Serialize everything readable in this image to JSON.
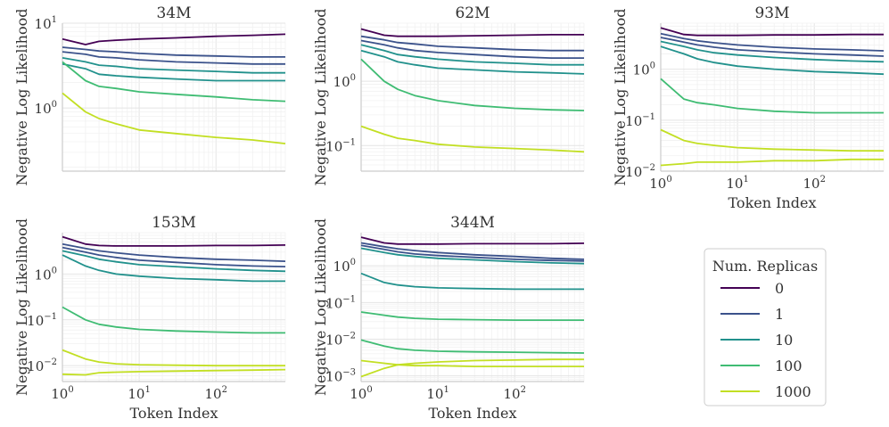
{
  "colors": {
    "0": "#440154",
    "1": "#3b528b",
    "10": "#21918c",
    "100": "#3fbc73",
    "1000": "#c2df23",
    "grid": "#ececec",
    "axis": "#cccccc"
  },
  "legend": {
    "title": "Num. Replicas",
    "entries": [
      "0",
      "1",
      "10",
      "100",
      "1000"
    ]
  },
  "chart_data": [
    {
      "type": "line",
      "title": "34M",
      "xlabel": "",
      "ylabel": "Negative Log Likelihood",
      "xscale": "log",
      "yscale": "log",
      "xlim": [
        1,
        800
      ],
      "ylim": [
        0.18,
        10
      ],
      "yticks": [
        {
          "value": 1,
          "base": "10",
          "exp": "0"
        },
        {
          "value": 10,
          "base": "10",
          "exp": "1"
        }
      ],
      "xticks": [],
      "series": [
        {
          "name": "0",
          "x": [
            1,
            2,
            3,
            5,
            10,
            30,
            100,
            300,
            800
          ],
          "y": [
            6.5,
            5.6,
            6.1,
            6.3,
            6.5,
            6.7,
            7.0,
            7.2,
            7.4
          ]
        },
        {
          "name": "1",
          "x": [
            1,
            2,
            3,
            5,
            10,
            30,
            100,
            300,
            800
          ],
          "y": [
            5.2,
            4.9,
            4.7,
            4.6,
            4.4,
            4.2,
            4.1,
            4.0,
            4.0
          ]
        },
        {
          "name": "1",
          "x": [
            1,
            2,
            3,
            5,
            10,
            30,
            100,
            300,
            800
          ],
          "y": [
            4.6,
            4.3,
            4.0,
            3.9,
            3.7,
            3.5,
            3.4,
            3.3,
            3.3
          ]
        },
        {
          "name": "10",
          "x": [
            1,
            2,
            3,
            5,
            10,
            30,
            100,
            300,
            800
          ],
          "y": [
            3.9,
            3.5,
            3.2,
            3.1,
            2.9,
            2.8,
            2.7,
            2.6,
            2.6
          ]
        },
        {
          "name": "10",
          "x": [
            1,
            2,
            3,
            5,
            10,
            30,
            100,
            300,
            800
          ],
          "y": [
            3.3,
            2.9,
            2.5,
            2.4,
            2.3,
            2.2,
            2.1,
            2.1,
            2.1
          ]
        },
        {
          "name": "100",
          "x": [
            1,
            2,
            3,
            5,
            10,
            30,
            100,
            300,
            800
          ],
          "y": [
            3.5,
            2.1,
            1.8,
            1.7,
            1.55,
            1.45,
            1.35,
            1.25,
            1.2
          ]
        },
        {
          "name": "1000",
          "x": [
            1,
            2,
            3,
            5,
            10,
            30,
            100,
            300,
            800
          ],
          "y": [
            1.5,
            0.9,
            0.75,
            0.65,
            0.55,
            0.5,
            0.45,
            0.42,
            0.38
          ]
        }
      ]
    },
    {
      "type": "line",
      "title": "62M",
      "xlabel": "",
      "ylabel": "Negative Log Likelihood",
      "xscale": "log",
      "yscale": "log",
      "xlim": [
        1,
        800
      ],
      "ylim": [
        0.04,
        8
      ],
      "yticks": [
        {
          "value": 0.1,
          "base": "10",
          "exp": "−1"
        },
        {
          "value": 1,
          "base": "10",
          "exp": "0"
        }
      ],
      "xticks": [],
      "series": [
        {
          "name": "0",
          "x": [
            1,
            2,
            3,
            5,
            10,
            30,
            100,
            300,
            800
          ],
          "y": [
            6.5,
            5.2,
            5.0,
            5.0,
            5.0,
            5.1,
            5.2,
            5.3,
            5.3
          ]
        },
        {
          "name": "1",
          "x": [
            1,
            2,
            3,
            5,
            10,
            30,
            100,
            300,
            800
          ],
          "y": [
            5.0,
            4.4,
            4.0,
            3.8,
            3.5,
            3.3,
            3.1,
            3.0,
            3.0
          ]
        },
        {
          "name": "1",
          "x": [
            1,
            2,
            3,
            5,
            10,
            30,
            100,
            300,
            800
          ],
          "y": [
            4.3,
            3.7,
            3.3,
            3.0,
            2.8,
            2.6,
            2.4,
            2.3,
            2.3
          ]
        },
        {
          "name": "10",
          "x": [
            1,
            2,
            3,
            5,
            10,
            30,
            100,
            300,
            800
          ],
          "y": [
            3.7,
            3.0,
            2.6,
            2.4,
            2.2,
            2.0,
            1.9,
            1.8,
            1.8
          ]
        },
        {
          "name": "10",
          "x": [
            1,
            2,
            3,
            5,
            10,
            30,
            100,
            300,
            800
          ],
          "y": [
            3.0,
            2.4,
            2.0,
            1.8,
            1.6,
            1.5,
            1.4,
            1.35,
            1.3
          ]
        },
        {
          "name": "100",
          "x": [
            1,
            2,
            3,
            5,
            10,
            30,
            100,
            300,
            800
          ],
          "y": [
            2.2,
            1.0,
            0.75,
            0.6,
            0.5,
            0.42,
            0.38,
            0.36,
            0.35
          ]
        },
        {
          "name": "1000",
          "x": [
            1,
            2,
            3,
            5,
            10,
            30,
            100,
            300,
            800
          ],
          "y": [
            0.2,
            0.15,
            0.13,
            0.12,
            0.105,
            0.095,
            0.09,
            0.085,
            0.08
          ]
        }
      ]
    },
    {
      "type": "line",
      "title": "93M",
      "xlabel": "Token Index",
      "ylabel": "Negative Log Likelihood",
      "xscale": "log",
      "yscale": "log",
      "xlim": [
        1,
        800
      ],
      "ylim": [
        0.01,
        8
      ],
      "yticks": [
        {
          "value": 0.01,
          "base": "10",
          "exp": "−2"
        },
        {
          "value": 0.1,
          "base": "10",
          "exp": "−1"
        },
        {
          "value": 1,
          "base": "10",
          "exp": "0"
        }
      ],
      "xticks": [
        {
          "value": 1,
          "base": "10",
          "exp": "0"
        },
        {
          "value": 10,
          "base": "10",
          "exp": "1"
        },
        {
          "value": 100,
          "base": "10",
          "exp": "2"
        }
      ],
      "series": [
        {
          "name": "0",
          "x": [
            1,
            2,
            3,
            5,
            10,
            30,
            100,
            300,
            800
          ],
          "y": [
            6.5,
            4.8,
            4.6,
            4.6,
            4.6,
            4.7,
            4.7,
            4.8,
            4.8
          ]
        },
        {
          "name": "1",
          "x": [
            1,
            2,
            3,
            5,
            10,
            30,
            100,
            300,
            800
          ],
          "y": [
            5.0,
            4.0,
            3.6,
            3.3,
            3.0,
            2.7,
            2.5,
            2.4,
            2.3
          ]
        },
        {
          "name": "1",
          "x": [
            1,
            2,
            3,
            5,
            10,
            30,
            100,
            300,
            800
          ],
          "y": [
            4.2,
            3.4,
            3.0,
            2.7,
            2.4,
            2.2,
            2.0,
            1.9,
            1.8
          ]
        },
        {
          "name": "10",
          "x": [
            1,
            2,
            3,
            5,
            10,
            30,
            100,
            300,
            800
          ],
          "y": [
            3.5,
            2.8,
            2.4,
            2.1,
            1.9,
            1.7,
            1.55,
            1.45,
            1.4
          ]
        },
        {
          "name": "10",
          "x": [
            1,
            2,
            3,
            5,
            10,
            30,
            100,
            300,
            800
          ],
          "y": [
            2.8,
            2.0,
            1.6,
            1.35,
            1.15,
            1.0,
            0.9,
            0.85,
            0.8
          ]
        },
        {
          "name": "100",
          "x": [
            1,
            2,
            3,
            5,
            10,
            30,
            100,
            300,
            800
          ],
          "y": [
            0.65,
            0.26,
            0.22,
            0.2,
            0.17,
            0.15,
            0.14,
            0.14,
            0.14
          ]
        },
        {
          "name": "1000",
          "x": [
            1,
            2,
            3,
            5,
            10,
            30,
            100,
            300,
            800
          ],
          "y": [
            0.065,
            0.04,
            0.035,
            0.032,
            0.029,
            0.027,
            0.026,
            0.025,
            0.025
          ]
        },
        {
          "name": "1000",
          "x": [
            1,
            2,
            3,
            5,
            10,
            30,
            100,
            300,
            800
          ],
          "y": [
            0.013,
            0.014,
            0.015,
            0.015,
            0.015,
            0.016,
            0.016,
            0.017,
            0.017
          ]
        }
      ]
    },
    {
      "type": "line",
      "title": "153M",
      "xlabel": "Token Index",
      "ylabel": "Negative Log Likelihood",
      "xscale": "log",
      "yscale": "log",
      "xlim": [
        1,
        800
      ],
      "ylim": [
        0.0045,
        8
      ],
      "yticks": [
        {
          "value": 0.01,
          "base": "10",
          "exp": "−2"
        },
        {
          "value": 0.1,
          "base": "10",
          "exp": "−1"
        },
        {
          "value": 1,
          "base": "10",
          "exp": "0"
        }
      ],
      "xticks": [
        {
          "value": 1,
          "base": "10",
          "exp": "0"
        },
        {
          "value": 10,
          "base": "10",
          "exp": "1"
        },
        {
          "value": 100,
          "base": "10",
          "exp": "2"
        }
      ],
      "series": [
        {
          "name": "0",
          "x": [
            1,
            2,
            3,
            5,
            10,
            30,
            100,
            300,
            800
          ],
          "y": [
            6.5,
            4.5,
            4.2,
            4.1,
            4.1,
            4.1,
            4.2,
            4.2,
            4.3
          ]
        },
        {
          "name": "1",
          "x": [
            1,
            2,
            3,
            5,
            10,
            30,
            100,
            300,
            800
          ],
          "y": [
            4.5,
            3.6,
            3.2,
            2.9,
            2.6,
            2.3,
            2.1,
            2.0,
            1.9
          ]
        },
        {
          "name": "1",
          "x": [
            1,
            2,
            3,
            5,
            10,
            30,
            100,
            300,
            800
          ],
          "y": [
            3.8,
            3.0,
            2.6,
            2.3,
            2.0,
            1.8,
            1.6,
            1.5,
            1.45
          ]
        },
        {
          "name": "10",
          "x": [
            1,
            2,
            3,
            5,
            10,
            30,
            100,
            300,
            800
          ],
          "y": [
            3.2,
            2.5,
            2.1,
            1.85,
            1.6,
            1.45,
            1.3,
            1.2,
            1.15
          ]
        },
        {
          "name": "10",
          "x": [
            1,
            2,
            3,
            5,
            10,
            30,
            100,
            300,
            800
          ],
          "y": [
            2.6,
            1.5,
            1.2,
            1.0,
            0.9,
            0.8,
            0.75,
            0.7,
            0.7
          ]
        },
        {
          "name": "100",
          "x": [
            1,
            2,
            3,
            5,
            10,
            30,
            100,
            300,
            800
          ],
          "y": [
            0.19,
            0.1,
            0.08,
            0.07,
            0.062,
            0.057,
            0.054,
            0.052,
            0.052
          ]
        },
        {
          "name": "1000",
          "x": [
            1,
            2,
            3,
            5,
            10,
            30,
            100,
            300,
            800
          ],
          "y": [
            0.022,
            0.014,
            0.012,
            0.011,
            0.0105,
            0.0102,
            0.01,
            0.01,
            0.01
          ]
        },
        {
          "name": "1000",
          "x": [
            1,
            2,
            3,
            5,
            10,
            30,
            100,
            300,
            800
          ],
          "y": [
            0.0065,
            0.0063,
            0.007,
            0.0072,
            0.0074,
            0.0076,
            0.0078,
            0.008,
            0.0082
          ]
        }
      ]
    },
    {
      "type": "line",
      "title": "344M",
      "xlabel": "Token Index",
      "ylabel": "Negative Log Likelihood",
      "xscale": "log",
      "yscale": "log",
      "xlim": [
        1,
        800
      ],
      "ylim": [
        0.0007,
        8
      ],
      "yticks": [
        {
          "value": 0.001,
          "base": "10",
          "exp": "−3"
        },
        {
          "value": 0.01,
          "base": "10",
          "exp": "−2"
        },
        {
          "value": 0.1,
          "base": "10",
          "exp": "−1"
        },
        {
          "value": 1,
          "base": "10",
          "exp": "0"
        }
      ],
      "xticks": [
        {
          "value": 1,
          "base": "10",
          "exp": "0"
        },
        {
          "value": 10,
          "base": "10",
          "exp": "1"
        },
        {
          "value": 100,
          "base": "10",
          "exp": "2"
        }
      ],
      "series": [
        {
          "name": "0",
          "x": [
            1,
            2,
            3,
            5,
            10,
            30,
            100,
            300,
            800
          ],
          "y": [
            6.0,
            4.2,
            3.9,
            3.9,
            3.9,
            4.0,
            4.0,
            4.0,
            4.1
          ]
        },
        {
          "name": "1",
          "x": [
            1,
            2,
            3,
            5,
            10,
            30,
            100,
            300,
            800
          ],
          "y": [
            4.2,
            3.3,
            2.9,
            2.6,
            2.3,
            2.0,
            1.8,
            1.6,
            1.5
          ]
        },
        {
          "name": "1",
          "x": [
            1,
            2,
            3,
            5,
            10,
            30,
            100,
            300,
            800
          ],
          "y": [
            3.6,
            2.8,
            2.4,
            2.1,
            1.9,
            1.7,
            1.5,
            1.4,
            1.35
          ]
        },
        {
          "name": "10",
          "x": [
            1,
            2,
            3,
            5,
            10,
            30,
            100,
            300,
            800
          ],
          "y": [
            3.0,
            2.3,
            2.0,
            1.8,
            1.6,
            1.45,
            1.3,
            1.2,
            1.15
          ]
        },
        {
          "name": "10",
          "x": [
            1,
            2,
            3,
            5,
            10,
            30,
            100,
            300,
            800
          ],
          "y": [
            0.62,
            0.35,
            0.3,
            0.27,
            0.25,
            0.24,
            0.23,
            0.23,
            0.23
          ]
        },
        {
          "name": "100",
          "x": [
            1,
            2,
            3,
            5,
            10,
            30,
            100,
            300,
            800
          ],
          "y": [
            0.055,
            0.045,
            0.04,
            0.037,
            0.035,
            0.034,
            0.033,
            0.033,
            0.033
          ]
        },
        {
          "name": "100",
          "x": [
            1,
            2,
            3,
            5,
            10,
            30,
            100,
            300,
            800
          ],
          "y": [
            0.0095,
            0.0065,
            0.0055,
            0.005,
            0.0047,
            0.0045,
            0.0044,
            0.0043,
            0.0042
          ]
        },
        {
          "name": "1000",
          "x": [
            1,
            2,
            3,
            5,
            10,
            30,
            100,
            300,
            800
          ],
          "y": [
            0.0026,
            0.0022,
            0.002,
            0.0019,
            0.0019,
            0.0018,
            0.0018,
            0.0018,
            0.0018
          ]
        },
        {
          "name": "1000",
          "x": [
            1,
            2,
            3,
            5,
            10,
            30,
            100,
            300,
            800
          ],
          "y": [
            0.00095,
            0.0016,
            0.002,
            0.0022,
            0.0024,
            0.0026,
            0.0027,
            0.0028,
            0.0028
          ]
        }
      ]
    }
  ]
}
